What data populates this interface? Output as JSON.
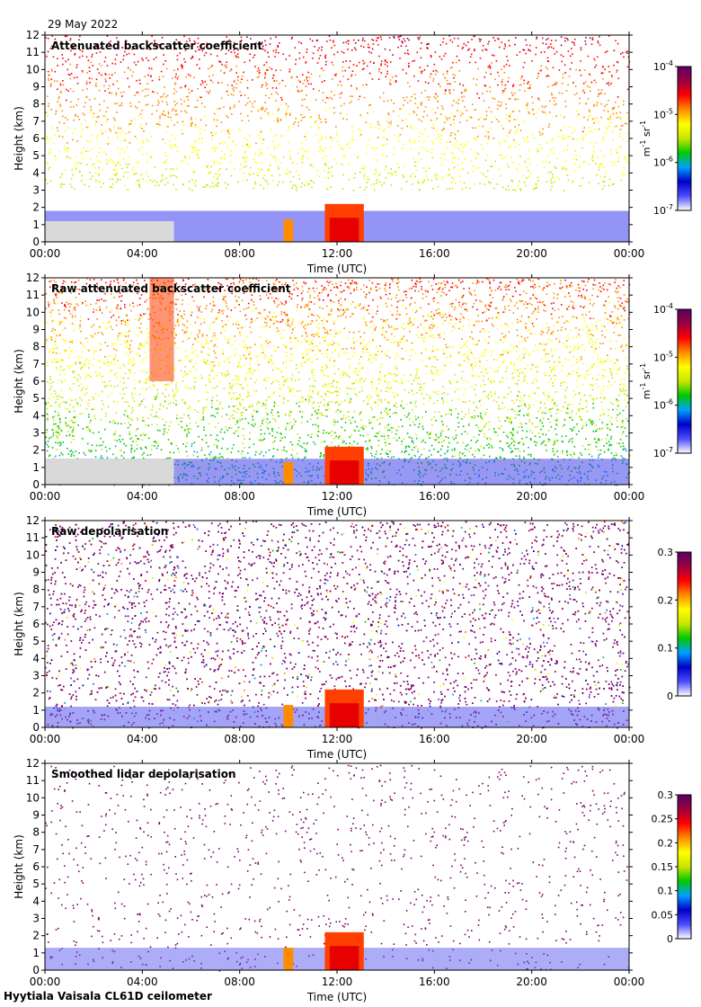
{
  "date": "29 May 2022",
  "footer": "Hyytiala Vaisala CL61D ceilometer",
  "colors": {
    "ramp": [
      "#ffffff",
      "#4b4bff",
      "#0000c8",
      "#00a0ff",
      "#00c800",
      "#c8e600",
      "#ffff00",
      "#ff8c00",
      "#ff0000",
      "#9b0040",
      "#5a0064"
    ]
  },
  "chart_data": [
    {
      "type": "heatmap",
      "title": "Attenuated backscatter coefficient",
      "xlabel": "Time (UTC)",
      "ylabel": "Height (km)",
      "xticks": [
        "00:00",
        "04:00",
        "08:00",
        "12:00",
        "16:00",
        "20:00",
        "00:00"
      ],
      "yticks": [
        "0",
        "1",
        "2",
        "3",
        "4",
        "5",
        "6",
        "7",
        "8",
        "9",
        "10",
        "11",
        "12"
      ],
      "xlim": [
        0,
        24
      ],
      "ylim": [
        0,
        12
      ],
      "grid": false,
      "colorbar": {
        "scale": "log",
        "range": [
          1e-07,
          0.0001
        ],
        "ticks": [
          {
            "base": "10",
            "exp": "-7",
            "pos": 0
          },
          {
            "base": "10",
            "exp": "-6",
            "pos": 0.333
          },
          {
            "base": "10",
            "exp": "-5",
            "pos": 0.667
          },
          {
            "base": "10",
            "exp": "-4",
            "pos": 1
          }
        ],
        "unit": {
          "m": "m",
          "m_exp": "-1",
          "sr": "sr",
          "sr_exp": "-1"
        }
      }
    },
    {
      "type": "heatmap",
      "title": "Raw attenuated backscatter coefficient",
      "xlabel": "Time (UTC)",
      "ylabel": "Height (km)",
      "xticks": [
        "00:00",
        "04:00",
        "08:00",
        "12:00",
        "16:00",
        "20:00",
        "00:00"
      ],
      "yticks": [
        "0",
        "1",
        "2",
        "3",
        "4",
        "5",
        "6",
        "7",
        "8",
        "9",
        "10",
        "11",
        "12"
      ],
      "xlim": [
        0,
        24
      ],
      "ylim": [
        0,
        12
      ],
      "grid": false,
      "colorbar": {
        "scale": "log",
        "range": [
          1e-07,
          0.0001
        ],
        "ticks": [
          {
            "base": "10",
            "exp": "-7",
            "pos": 0
          },
          {
            "base": "10",
            "exp": "-6",
            "pos": 0.333
          },
          {
            "base": "10",
            "exp": "-5",
            "pos": 0.667
          },
          {
            "base": "10",
            "exp": "-4",
            "pos": 1
          }
        ],
        "unit": {
          "m": "m",
          "m_exp": "-1",
          "sr": "sr",
          "sr_exp": "-1"
        }
      }
    },
    {
      "type": "heatmap",
      "title": "Raw depolarisation",
      "xlabel": "Time (UTC)",
      "ylabel": "Height (km)",
      "xticks": [
        "00:00",
        "04:00",
        "08:00",
        "12:00",
        "16:00",
        "20:00",
        "00:00"
      ],
      "yticks": [
        "0",
        "1",
        "2",
        "3",
        "4",
        "5",
        "6",
        "7",
        "8",
        "9",
        "10",
        "11",
        "12"
      ],
      "xlim": [
        0,
        24
      ],
      "ylim": [
        0,
        12
      ],
      "grid": false,
      "colorbar": {
        "scale": "linear",
        "range": [
          0,
          0.3
        ],
        "ticks": [
          {
            "label": "0",
            "pos": 0
          },
          {
            "label": "0.1",
            "pos": 0.333
          },
          {
            "label": "0.2",
            "pos": 0.667
          },
          {
            "label": "0.3",
            "pos": 1
          }
        ]
      }
    },
    {
      "type": "heatmap",
      "title": "Smoothed lidar depolarisation",
      "xlabel": "Time (UTC)",
      "ylabel": "Height (km)",
      "xticks": [
        "00:00",
        "04:00",
        "08:00",
        "12:00",
        "16:00",
        "20:00",
        "00:00"
      ],
      "yticks": [
        "0",
        "1",
        "2",
        "3",
        "4",
        "5",
        "6",
        "7",
        "8",
        "9",
        "10",
        "11",
        "12"
      ],
      "xlim": [
        0,
        24
      ],
      "ylim": [
        0,
        12
      ],
      "grid": false,
      "colorbar": {
        "scale": "linear",
        "range": [
          0,
          0.3
        ],
        "ticks": [
          {
            "label": "0",
            "pos": 0
          },
          {
            "label": "0.05",
            "pos": 0.1667
          },
          {
            "label": "0.1",
            "pos": 0.3333
          },
          {
            "label": "0.15",
            "pos": 0.5
          },
          {
            "label": "0.2",
            "pos": 0.6667
          },
          {
            "label": "0.25",
            "pos": 0.8333
          },
          {
            "label": "0.3",
            "pos": 1
          }
        ]
      }
    }
  ]
}
